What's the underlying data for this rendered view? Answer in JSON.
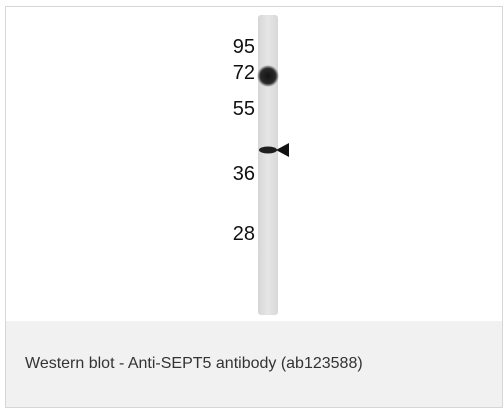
{
  "blot": {
    "markers": [
      "95",
      "72",
      "55",
      "36",
      "28"
    ]
  },
  "caption": {
    "text": "Western blot - Anti-SEPT5 antibody (ab123588)"
  }
}
